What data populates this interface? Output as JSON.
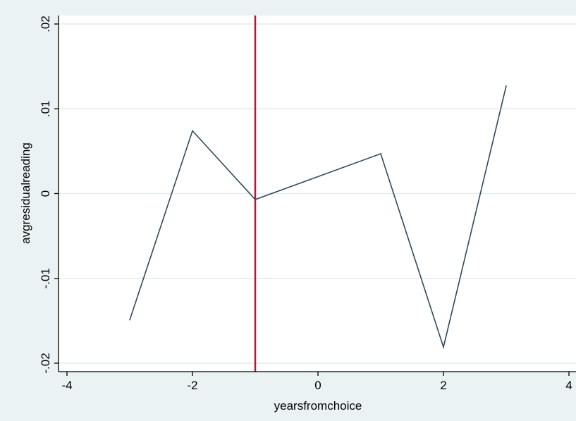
{
  "chart_data": {
    "type": "line",
    "title": "",
    "xlabel": "yearsfromchoice",
    "ylabel": "avgresidualreading",
    "xlim": [
      -4,
      4
    ],
    "ylim": [
      -0.02,
      0.02
    ],
    "x_ticks": [
      -4,
      -2,
      0,
      2,
      4
    ],
    "x_tick_labels": [
      "-4",
      "-2",
      "0",
      "2",
      "4"
    ],
    "y_ticks": [
      -0.02,
      -0.01,
      0,
      0.01,
      0.02
    ],
    "y_tick_labels": [
      "-.02",
      "-.01",
      "0",
      ".01",
      ".02"
    ],
    "grid": true,
    "grid_axis": "y",
    "series": [
      {
        "x": [
          -3,
          -2,
          -1,
          1,
          2,
          3
        ],
        "y": [
          -0.0149,
          0.0074,
          -0.0007,
          0.0047,
          -0.0181,
          0.0127
        ],
        "color": "#2f4a5e"
      }
    ],
    "reference_lines": [
      {
        "axis": "x",
        "value": -1,
        "color": "#c8102e"
      }
    ],
    "colors": {
      "background": "#eaf2f3",
      "plot_background": "#ffffff",
      "grid": "#e2ecee",
      "axis": "#000000"
    }
  }
}
